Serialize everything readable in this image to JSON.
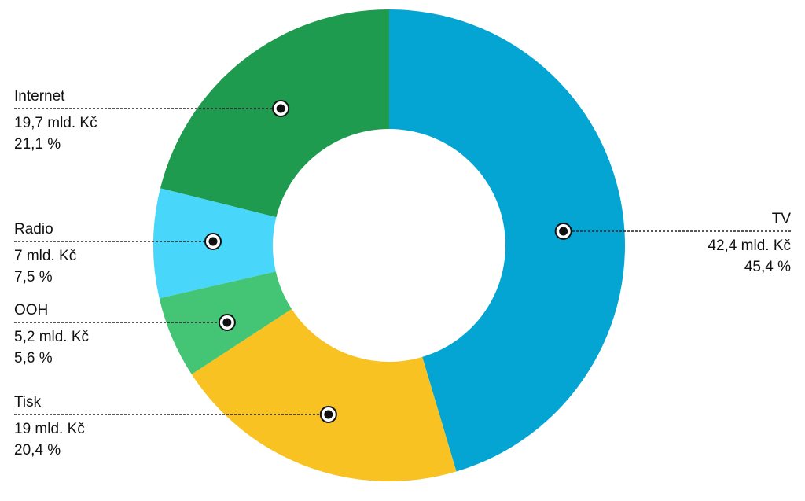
{
  "chart_data": {
    "type": "pie",
    "style": "donut",
    "unit_value": "mld. Kč",
    "slices": [
      {
        "id": "tv",
        "name": "TV",
        "value_text": "42,4 mld. Kč",
        "value": 42.4,
        "percent_text": "45,4 %",
        "percent": 45.4,
        "color": "#04a4d3",
        "label_side": "right"
      },
      {
        "id": "tisk",
        "name": "Tisk",
        "value_text": "19 mld. Kč",
        "value": 19.0,
        "percent_text": "20,4 %",
        "percent": 20.4,
        "color": "#f8c222",
        "label_side": "left"
      },
      {
        "id": "ooh",
        "name": "OOH",
        "value_text": "5,2 mld. Kč",
        "value": 5.2,
        "percent_text": "5,6 %",
        "percent": 5.6,
        "color": "#43c575",
        "label_side": "left"
      },
      {
        "id": "radio",
        "name": "Radio",
        "value_text": "7 mld. Kč",
        "value": 7.0,
        "percent_text": "7,5 %",
        "percent": 7.5,
        "color": "#48d6fa",
        "label_side": "left"
      },
      {
        "id": "internet",
        "name": "Internet",
        "value_text": "19,7 mld. Kč",
        "value": 19.7,
        "percent_text": "21,1 %",
        "percent": 21.1,
        "color": "#1f9b4f",
        "label_side": "left"
      }
    ],
    "start": "12 o'clock",
    "direction": "clockwise",
    "legend": "none",
    "title": ""
  }
}
